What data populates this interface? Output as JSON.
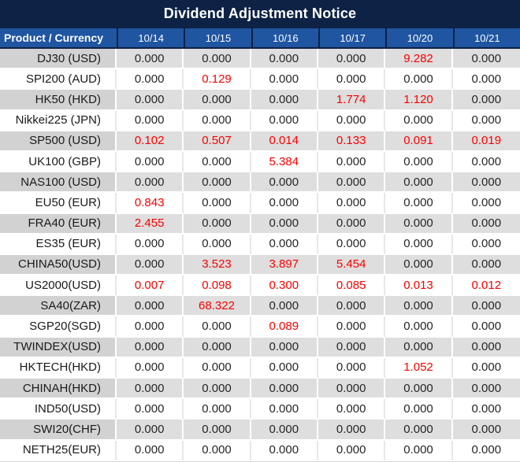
{
  "title": "Dividend Adjustment Notice",
  "colors": {
    "title_bg": "#0d2245",
    "header_bg": "#1f55a1",
    "header_border": "#0d2245",
    "header_text": "#ffffff",
    "stripe_label_bg": "#d2d2d2",
    "stripe_value_bg": "#dedede",
    "row_white_bg": "#ffffff",
    "value_text": "#262626",
    "nonzero_value_text": "#fa0000"
  },
  "table": {
    "product_header": "Product / Currency",
    "date_headers": [
      "10/14",
      "10/15",
      "10/16",
      "10/17",
      "10/20",
      "10/21"
    ],
    "rows": [
      {
        "product": "DJ30 (USD)",
        "values": [
          "0.000",
          "0.000",
          "0.000",
          "0.000",
          "9.282",
          "0.000"
        ]
      },
      {
        "product": "SPI200 (AUD)",
        "values": [
          "0.000",
          "0.129",
          "0.000",
          "0.000",
          "0.000",
          "0.000"
        ]
      },
      {
        "product": "HK50 (HKD)",
        "values": [
          "0.000",
          "0.000",
          "0.000",
          "1.774",
          "1.120",
          "0.000"
        ]
      },
      {
        "product": "Nikkei225 (JPN)",
        "values": [
          "0.000",
          "0.000",
          "0.000",
          "0.000",
          "0.000",
          "0.000"
        ]
      },
      {
        "product": "SP500 (USD)",
        "values": [
          "0.102",
          "0.507",
          "0.014",
          "0.133",
          "0.091",
          "0.019"
        ]
      },
      {
        "product": "UK100 (GBP)",
        "values": [
          "0.000",
          "0.000",
          "5.384",
          "0.000",
          "0.000",
          "0.000"
        ]
      },
      {
        "product": "NAS100 (USD)",
        "values": [
          "0.000",
          "0.000",
          "0.000",
          "0.000",
          "0.000",
          "0.000"
        ]
      },
      {
        "product": "EU50 (EUR)",
        "values": [
          "0.843",
          "0.000",
          "0.000",
          "0.000",
          "0.000",
          "0.000"
        ]
      },
      {
        "product": "FRA40 (EUR)",
        "values": [
          "2.455",
          "0.000",
          "0.000",
          "0.000",
          "0.000",
          "0.000"
        ]
      },
      {
        "product": "ES35 (EUR)",
        "values": [
          "0.000",
          "0.000",
          "0.000",
          "0.000",
          "0.000",
          "0.000"
        ]
      },
      {
        "product": "CHINA50(USD)",
        "values": [
          "0.000",
          "3.523",
          "3.897",
          "5.454",
          "0.000",
          "0.000"
        ]
      },
      {
        "product": "US2000(USD)",
        "values": [
          "0.007",
          "0.098",
          "0.300",
          "0.085",
          "0.013",
          "0.012"
        ]
      },
      {
        "product": "SA40(ZAR)",
        "values": [
          "0.000",
          "68.322",
          "0.000",
          "0.000",
          "0.000",
          "0.000"
        ]
      },
      {
        "product": "SGP20(SGD)",
        "values": [
          "0.000",
          "0.000",
          "0.089",
          "0.000",
          "0.000",
          "0.000"
        ]
      },
      {
        "product": "TWINDEX(USD)",
        "values": [
          "0.000",
          "0.000",
          "0.000",
          "0.000",
          "0.000",
          "0.000"
        ]
      },
      {
        "product": "HKTECH(HKD)",
        "values": [
          "0.000",
          "0.000",
          "0.000",
          "0.000",
          "1.052",
          "0.000"
        ]
      },
      {
        "product": "CHINAH(HKD)",
        "values": [
          "0.000",
          "0.000",
          "0.000",
          "0.000",
          "0.000",
          "0.000"
        ]
      },
      {
        "product": "IND50(USD)",
        "values": [
          "0.000",
          "0.000",
          "0.000",
          "0.000",
          "0.000",
          "0.000"
        ]
      },
      {
        "product": "SWI20(CHF)",
        "values": [
          "0.000",
          "0.000",
          "0.000",
          "0.000",
          "0.000",
          "0.000"
        ]
      },
      {
        "product": "NETH25(EUR)",
        "values": [
          "0.000",
          "0.000",
          "0.000",
          "0.000",
          "0.000",
          "0.000"
        ]
      }
    ]
  }
}
